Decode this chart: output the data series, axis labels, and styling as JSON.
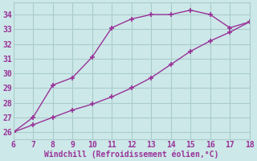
{
  "xlabel": "Windchill (Refroidissement éolien,°C)",
  "line1_x": [
    6,
    7,
    8,
    9,
    10,
    11,
    12,
    13,
    14,
    15,
    16,
    17,
    18
  ],
  "line1_y": [
    26.0,
    27.0,
    29.2,
    29.7,
    31.1,
    33.1,
    33.7,
    34.0,
    34.0,
    34.3,
    34.0,
    33.1,
    33.5
  ],
  "line2_x": [
    6,
    7,
    8,
    9,
    10,
    11,
    12,
    13,
    14,
    15,
    16,
    17,
    18
  ],
  "line2_y": [
    26.0,
    26.5,
    27.0,
    27.5,
    27.9,
    28.4,
    29.0,
    29.7,
    30.6,
    31.5,
    32.2,
    32.8,
    33.5
  ],
  "line_color": "#993399",
  "bg_color": "#cce8e8",
  "grid_color": "#aacccc",
  "xlim": [
    6,
    18
  ],
  "ylim": [
    25.5,
    34.8
  ],
  "xticks": [
    6,
    7,
    8,
    9,
    10,
    11,
    12,
    13,
    14,
    15,
    16,
    17,
    18
  ],
  "yticks": [
    26,
    27,
    28,
    29,
    30,
    31,
    32,
    33,
    34
  ],
  "marker": "+",
  "markersize": 5,
  "linewidth": 1.0,
  "xlabel_fontsize": 7,
  "tick_fontsize": 7
}
